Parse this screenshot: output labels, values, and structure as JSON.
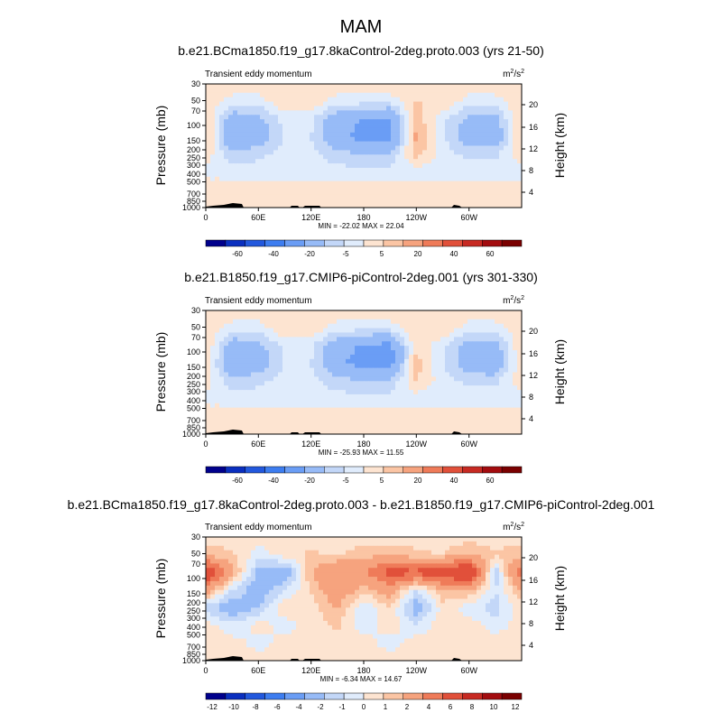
{
  "main_title": "MAM",
  "chart_data": [
    {
      "type": "heatmap",
      "title": "b.e21.BCma1850.f19_g17.8kaControl-2deg.proto.003 (yrs 21-50)",
      "subtitle": "Transient eddy momentum",
      "units": "m²/s²",
      "units_base": "m",
      "units_base_exp": "2",
      "units_slash": "/s",
      "units_slash_exp": "2",
      "ylabel": "Pressure (mb)",
      "ylabel_right": "Height (km)",
      "yticks": [
        "30",
        "50",
        "70",
        "100",
        "150",
        "200",
        "250",
        "300",
        "400",
        "500",
        "700",
        "850",
        "1000"
      ],
      "yticks_right": [
        "20",
        "16",
        "12",
        "8",
        "4"
      ],
      "xticks": [
        "0",
        "60E",
        "120E",
        "180",
        "120W",
        "60W"
      ],
      "stats": "MIN = -22.02   MAX =  22.04",
      "min": -22.02,
      "max": 22.04,
      "colorbar_levels": [
        "-60",
        "-40",
        "-20",
        "-5",
        "5",
        "20",
        "40",
        "60"
      ],
      "colorbar_colors": [
        "#00008c",
        "#0a2fbf",
        "#2258dd",
        "#3d7df0",
        "#6a9df5",
        "#97bbf7",
        "#c3d7f8",
        "#e0ecfc",
        "#fde4d1",
        "#fbc5a4",
        "#f6a37e",
        "#ef7b59",
        "#e1503a",
        "#c72a22",
        "#a30c0f",
        "#7a0000"
      ]
    },
    {
      "type": "heatmap",
      "title": "b.e21.B1850.f19_g17.CMIP6-piControl-2deg.001 (yrs 301-330)",
      "subtitle": "Transient eddy momentum",
      "units": "m²/s²",
      "units_base": "m",
      "units_base_exp": "2",
      "units_slash": "/s",
      "units_slash_exp": "2",
      "ylabel": "Pressure (mb)",
      "ylabel_right": "Height (km)",
      "yticks": [
        "30",
        "50",
        "70",
        "100",
        "150",
        "200",
        "250",
        "300",
        "400",
        "500",
        "700",
        "850",
        "1000"
      ],
      "yticks_right": [
        "20",
        "16",
        "12",
        "8",
        "4"
      ],
      "xticks": [
        "0",
        "60E",
        "120E",
        "180",
        "120W",
        "60W"
      ],
      "stats": "MIN = -25.93   MAX =  11.55",
      "min": -25.93,
      "max": 11.55,
      "colorbar_levels": [
        "-60",
        "-40",
        "-20",
        "-5",
        "5",
        "20",
        "40",
        "60"
      ],
      "colorbar_colors": [
        "#00008c",
        "#0a2fbf",
        "#2258dd",
        "#3d7df0",
        "#6a9df5",
        "#97bbf7",
        "#c3d7f8",
        "#e0ecfc",
        "#fde4d1",
        "#fbc5a4",
        "#f6a37e",
        "#ef7b59",
        "#e1503a",
        "#c72a22",
        "#a30c0f",
        "#7a0000"
      ]
    },
    {
      "type": "heatmap",
      "title": "b.e21.BCma1850.f19_g17.8kaControl-2deg.proto.003 - b.e21.B1850.f19_g17.CMIP6-piControl-2deg.001",
      "subtitle": "Transient eddy momentum",
      "units": "m²/s²",
      "units_base": "m",
      "units_base_exp": "2",
      "units_slash": "/s",
      "units_slash_exp": "2",
      "ylabel": "Pressure (mb)",
      "ylabel_right": "Height (km)",
      "yticks": [
        "30",
        "50",
        "70",
        "100",
        "150",
        "200",
        "250",
        "300",
        "400",
        "500",
        "700",
        "850",
        "1000"
      ],
      "yticks_right": [
        "20",
        "16",
        "12",
        "8",
        "4"
      ],
      "xticks": [
        "0",
        "60E",
        "120E",
        "180",
        "120W",
        "60W"
      ],
      "stats": "MIN = -6.34   MAX = 14.67",
      "min": -6.34,
      "max": 14.67,
      "colorbar_levels": [
        "-12",
        "-10",
        "-8",
        "-6",
        "-4",
        "-2",
        "-1",
        "0",
        "1",
        "2",
        "4",
        "6",
        "8",
        "10",
        "12"
      ],
      "colorbar_colors": [
        "#00008c",
        "#0a2fbf",
        "#2258dd",
        "#3d7df0",
        "#6a9df5",
        "#97bbf7",
        "#c3d7f8",
        "#e0ecfc",
        "#fde4d1",
        "#fbc5a4",
        "#f6a37e",
        "#ef7b59",
        "#e1503a",
        "#c72a22",
        "#a30c0f",
        "#7a0000"
      ]
    }
  ]
}
